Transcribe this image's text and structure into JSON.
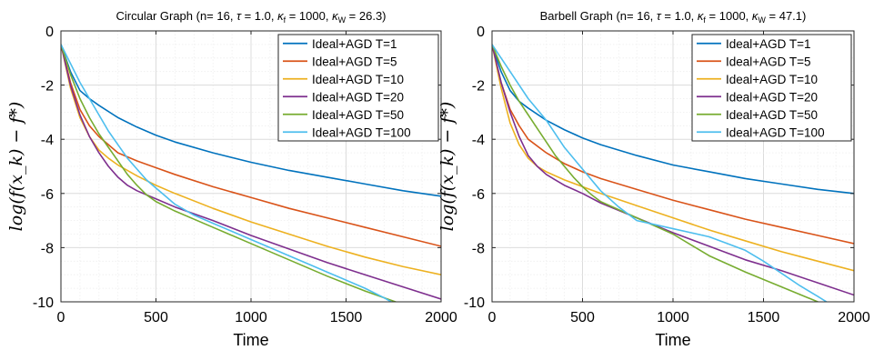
{
  "chart_data": [
    {
      "type": "line",
      "title": "Circular Graph (n= 16, τ = 1.0, κ_f = 1000, κ_W = 26.3)",
      "title_parts": {
        "prefix": "Circular Graph (n= 16, ",
        "tau": "τ",
        "tau_value": " = 1.0, ",
        "kappa": "κ",
        "kappa_f_sub": "f",
        "kappa_f_value": " = 1000, ",
        "kappa_w_sub": "W",
        "kappa_w_value": " = 26.3)"
      },
      "xlabel": "Time",
      "ylabel": "log(f(x_k) − f*)",
      "xlim": [
        0,
        2000
      ],
      "ylim": [
        -10,
        0
      ],
      "xticks": [
        0,
        500,
        1000,
        1500,
        2000
      ],
      "yticks": [
        0,
        -2,
        -4,
        -6,
        -8,
        -10
      ],
      "grid": true,
      "legend_position": "top-right",
      "series": [
        {
          "name": "Ideal+AGD T=1",
          "color": "#0072BD",
          "x": [
            0,
            50,
            100,
            150,
            200,
            300,
            400,
            500,
            600,
            800,
            1000,
            1200,
            1400,
            1600,
            1800,
            2000
          ],
          "y": [
            -0.5,
            -1.5,
            -2.2,
            -2.5,
            -2.75,
            -3.2,
            -3.55,
            -3.85,
            -4.1,
            -4.5,
            -4.85,
            -5.15,
            -5.4,
            -5.65,
            -5.9,
            -6.1
          ]
        },
        {
          "name": "Ideal+AGD T=5",
          "color": "#D95319",
          "x": [
            0,
            50,
            100,
            150,
            200,
            300,
            400,
            500,
            600,
            800,
            1000,
            1200,
            1400,
            1600,
            1800,
            2000
          ],
          "y": [
            -0.5,
            -1.9,
            -2.9,
            -3.5,
            -3.9,
            -4.5,
            -4.8,
            -5.05,
            -5.3,
            -5.75,
            -6.15,
            -6.55,
            -6.9,
            -7.25,
            -7.6,
            -7.95
          ]
        },
        {
          "name": "Ideal+AGD T=10",
          "color": "#EDB120",
          "x": [
            0,
            50,
            100,
            150,
            200,
            250,
            300,
            400,
            500,
            600,
            800,
            1000,
            1200,
            1400,
            1600,
            1800,
            2000
          ],
          "y": [
            -0.5,
            -2.1,
            -3.2,
            -3.9,
            -4.4,
            -4.7,
            -4.95,
            -5.35,
            -5.7,
            -6.0,
            -6.55,
            -7.05,
            -7.5,
            -7.95,
            -8.35,
            -8.7,
            -9.0
          ]
        },
        {
          "name": "Ideal+AGD T=20",
          "color": "#7E2F8E",
          "x": [
            0,
            50,
            100,
            150,
            200,
            250,
            300,
            350,
            400,
            500,
            600,
            800,
            1000,
            1200,
            1400,
            1600,
            1800,
            2000
          ],
          "y": [
            -0.5,
            -2.0,
            -3.1,
            -3.9,
            -4.5,
            -5.0,
            -5.4,
            -5.7,
            -5.9,
            -6.2,
            -6.5,
            -7.0,
            -7.55,
            -8.05,
            -8.55,
            -9.0,
            -9.45,
            -9.9
          ]
        },
        {
          "name": "Ideal+AGD T=50",
          "color": "#77AC30",
          "x": [
            0,
            50,
            100,
            150,
            200,
            250,
            300,
            350,
            400,
            450,
            500,
            600,
            800,
            1000,
            1200,
            1400,
            1600,
            1800
          ],
          "y": [
            -0.5,
            -1.6,
            -2.5,
            -3.2,
            -3.8,
            -4.3,
            -4.8,
            -5.3,
            -5.7,
            -6.05,
            -6.3,
            -6.65,
            -7.25,
            -7.85,
            -8.45,
            -9.05,
            -9.6,
            -10.1
          ]
        },
        {
          "name": "Ideal+AGD T=100",
          "color": "#4DBEEE",
          "x": [
            0,
            50,
            100,
            150,
            200,
            250,
            300,
            350,
            400,
            450,
            500,
            550,
            600,
            650,
            700,
            800,
            900,
            1000,
            1100,
            1200,
            1300,
            1400,
            1500,
            1600,
            1700,
            1750
          ],
          "y": [
            -0.5,
            -1.2,
            -1.9,
            -2.5,
            -3.1,
            -3.7,
            -4.2,
            -4.7,
            -5.1,
            -5.5,
            -5.8,
            -6.1,
            -6.4,
            -6.6,
            -6.8,
            -7.1,
            -7.4,
            -7.7,
            -8.0,
            -8.3,
            -8.6,
            -8.9,
            -9.2,
            -9.5,
            -9.85,
            -10.05
          ]
        }
      ]
    },
    {
      "type": "line",
      "title": "Barbell Graph (n= 16, τ = 1.0, κ_f = 1000, κ_W = 47.1)",
      "title_parts": {
        "prefix": "Barbell Graph (n= 16, ",
        "tau": "τ",
        "tau_value": " = 1.0, ",
        "kappa": "κ",
        "kappa_f_sub": "f",
        "kappa_f_value": " = 1000, ",
        "kappa_w_sub": "W",
        "kappa_w_value": " = 47.1)"
      },
      "xlabel": "Time",
      "ylabel": "log(f(x_k) − f*)",
      "xlim": [
        0,
        2000
      ],
      "ylim": [
        -10,
        0
      ],
      "xticks": [
        0,
        500,
        1000,
        1500,
        2000
      ],
      "yticks": [
        0,
        -2,
        -4,
        -6,
        -8,
        -10
      ],
      "grid": true,
      "legend_position": "top-right",
      "series": [
        {
          "name": "Ideal+AGD T=1",
          "color": "#0072BD",
          "x": [
            0,
            50,
            100,
            150,
            200,
            300,
            400,
            500,
            600,
            800,
            1000,
            1200,
            1400,
            1600,
            1800,
            2000
          ],
          "y": [
            -0.5,
            -1.5,
            -2.2,
            -2.6,
            -2.85,
            -3.3,
            -3.65,
            -3.95,
            -4.2,
            -4.6,
            -4.95,
            -5.2,
            -5.45,
            -5.65,
            -5.85,
            -6.0
          ]
        },
        {
          "name": "Ideal+AGD T=5",
          "color": "#D95319",
          "x": [
            0,
            50,
            100,
            150,
            200,
            300,
            400,
            500,
            600,
            800,
            1000,
            1200,
            1400,
            1600,
            1800,
            2000
          ],
          "y": [
            -0.5,
            -1.9,
            -2.9,
            -3.5,
            -4.0,
            -4.5,
            -4.9,
            -5.2,
            -5.45,
            -5.85,
            -6.25,
            -6.6,
            -6.95,
            -7.25,
            -7.55,
            -7.85
          ]
        },
        {
          "name": "Ideal+AGD T=10",
          "color": "#EDB120",
          "x": [
            0,
            50,
            100,
            150,
            200,
            250,
            300,
            400,
            500,
            600,
            800,
            1000,
            1200,
            1400,
            1600,
            1800,
            2000
          ],
          "y": [
            -0.5,
            -2.1,
            -3.4,
            -4.2,
            -4.7,
            -5.0,
            -5.2,
            -5.5,
            -5.75,
            -6.0,
            -6.45,
            -6.9,
            -7.35,
            -7.75,
            -8.15,
            -8.5,
            -8.85
          ]
        },
        {
          "name": "Ideal+AGD T=20",
          "color": "#7E2F8E",
          "x": [
            0,
            50,
            100,
            150,
            200,
            250,
            300,
            350,
            400,
            500,
            600,
            800,
            1000,
            1200,
            1400,
            1600,
            1800,
            2000
          ],
          "y": [
            -0.5,
            -1.9,
            -3.0,
            -3.9,
            -4.6,
            -5.0,
            -5.3,
            -5.5,
            -5.7,
            -6.0,
            -6.35,
            -6.9,
            -7.45,
            -7.95,
            -8.45,
            -8.85,
            -9.3,
            -9.75
          ]
        },
        {
          "name": "Ideal+AGD T=50",
          "color": "#77AC30",
          "x": [
            0,
            50,
            100,
            150,
            200,
            250,
            300,
            350,
            400,
            450,
            500,
            550,
            600,
            800,
            1000,
            1200,
            1400,
            1600,
            1800,
            1900
          ],
          "y": [
            -0.5,
            -1.3,
            -2.0,
            -2.6,
            -3.1,
            -3.6,
            -4.1,
            -4.6,
            -5.0,
            -5.4,
            -5.75,
            -6.05,
            -6.3,
            -6.9,
            -7.5,
            -8.3,
            -8.9,
            -9.45,
            -10.0,
            -10.2
          ]
        },
        {
          "name": "Ideal+AGD T=100",
          "color": "#4DBEEE",
          "x": [
            0,
            100,
            200,
            300,
            400,
            500,
            600,
            700,
            800,
            900,
            1000,
            1100,
            1200,
            1300,
            1400,
            1500,
            1600,
            1700,
            1800,
            1860
          ],
          "y": [
            -0.5,
            -1.5,
            -2.5,
            -3.3,
            -4.3,
            -5.1,
            -5.9,
            -6.5,
            -7.0,
            -7.15,
            -7.3,
            -7.45,
            -7.6,
            -7.85,
            -8.1,
            -8.5,
            -8.95,
            -9.4,
            -9.8,
            -10.05
          ]
        }
      ]
    }
  ]
}
